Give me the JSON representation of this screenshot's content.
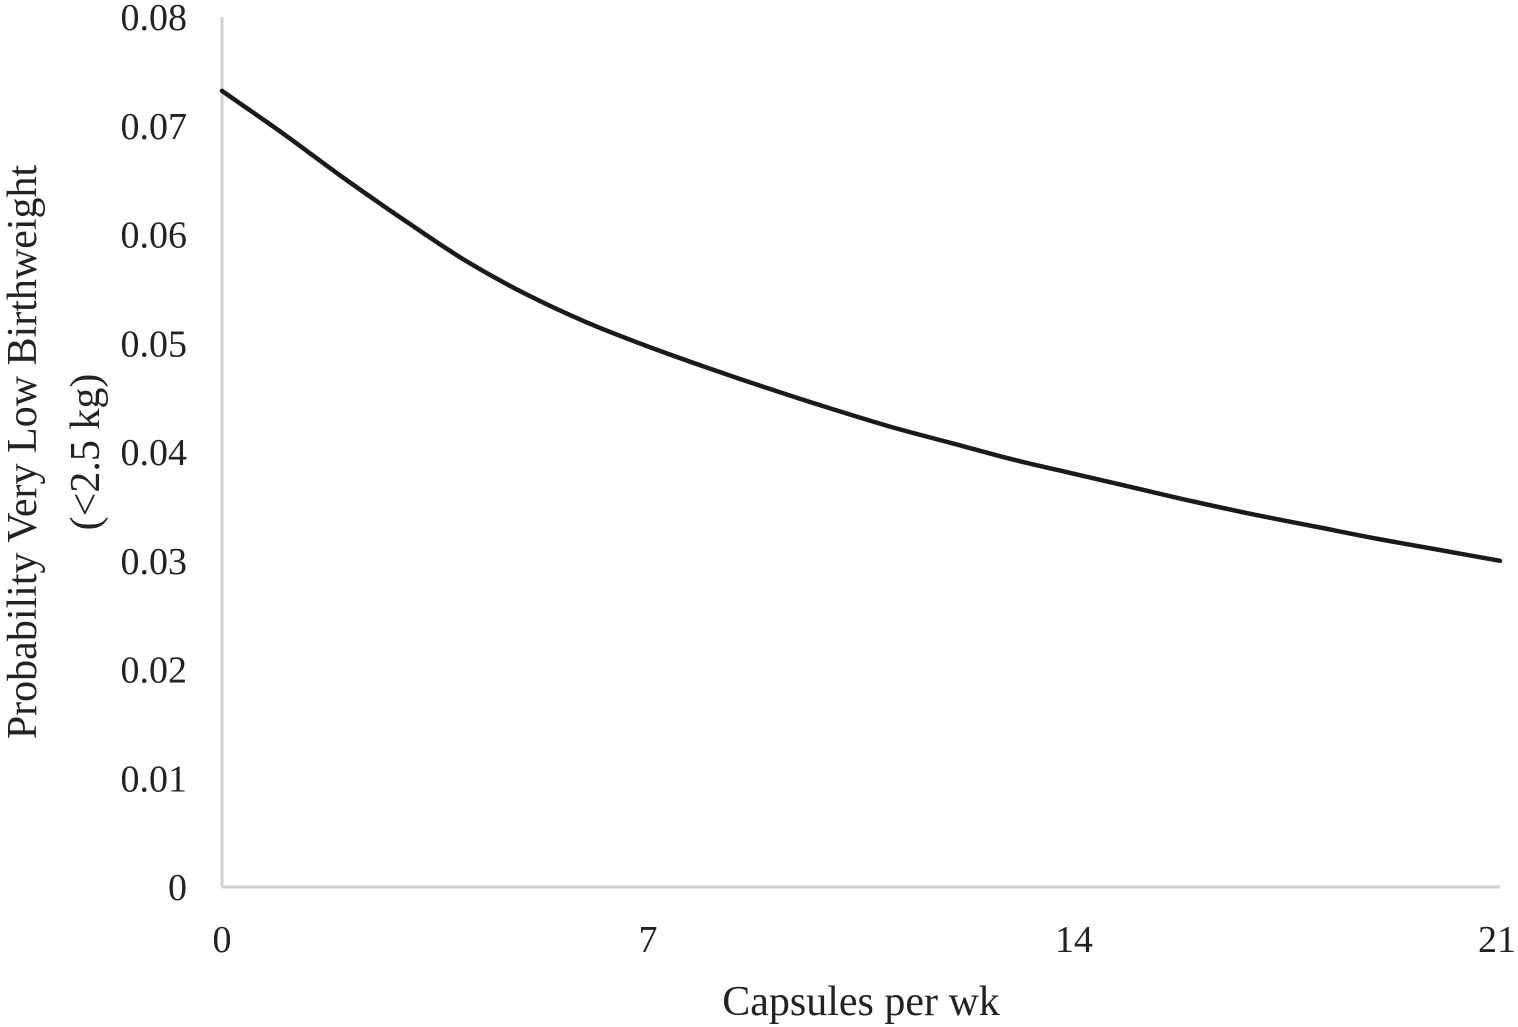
{
  "chart_data": {
    "type": "line",
    "title": "",
    "xlabel": "Capsules per wk",
    "ylabel_lines": [
      "Probability Very Low Birthweight",
      "(<2.5 kg)"
    ],
    "xlim": [
      0,
      21
    ],
    "ylim": [
      0,
      0.08
    ],
    "x_ticks": [
      0,
      7,
      14,
      21
    ],
    "x_tick_labels": [
      "0",
      "7",
      "14",
      "21"
    ],
    "y_ticks": [
      0,
      0.01,
      0.02,
      0.03,
      0.04,
      0.05,
      0.06,
      0.07,
      0.08
    ],
    "y_tick_labels": [
      "0",
      "0.01",
      "0.02",
      "0.03",
      "0.04",
      "0.05",
      "0.06",
      "0.07",
      "0.08"
    ],
    "grid": false,
    "legend": "none",
    "series": [
      {
        "color": "#1a1a1a",
        "x": [
          0,
          1,
          2,
          3,
          4,
          5,
          6,
          7,
          8,
          9,
          10,
          11,
          12,
          13,
          14,
          15,
          16,
          17,
          18,
          19,
          20,
          21
        ],
        "y": [
          0.0732,
          0.0693,
          0.0652,
          0.0613,
          0.0576,
          0.0545,
          0.0519,
          0.0497,
          0.0477,
          0.0458,
          0.044,
          0.0423,
          0.0408,
          0.0393,
          0.038,
          0.0367,
          0.0354,
          0.0342,
          0.0331,
          0.032,
          0.031,
          0.03
        ]
      }
    ]
  }
}
